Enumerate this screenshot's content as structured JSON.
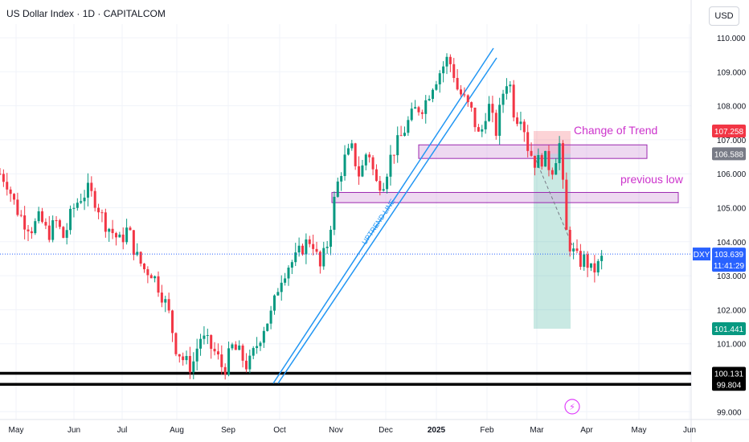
{
  "header": {
    "title": "US Dollar Index · 1D · CAPITALCOM",
    "currency": "USD"
  },
  "chart_data": {
    "type": "candlestick",
    "symbol": "DXY",
    "timeframe": "1D",
    "ylim": [
      98.8,
      110.5
    ],
    "y_ticks": [
      "110.000",
      "109.000",
      "108.000",
      "107.000",
      "106.000",
      "105.000",
      "104.000",
      "103.000",
      "102.000",
      "101.000",
      "99.000"
    ],
    "x_ticks": [
      "May",
      "Jun",
      "Jul",
      "Aug",
      "Sep",
      "Oct",
      "Nov",
      "Dec",
      "2025",
      "Feb",
      "Mar",
      "Apr",
      "May",
      "Jun"
    ],
    "price_path": [
      [
        0,
        106.0
      ],
      [
        4,
        105.8
      ],
      [
        10,
        105.0
      ],
      [
        15,
        104.6
      ],
      [
        20,
        104.4
      ],
      [
        25,
        104.7
      ],
      [
        30,
        104.2
      ],
      [
        35,
        104.6
      ],
      [
        40,
        104.1
      ],
      [
        45,
        104.9
      ],
      [
        50,
        105.3
      ],
      [
        55,
        105.5
      ],
      [
        60,
        105.2
      ],
      [
        65,
        104.6
      ],
      [
        70,
        104.3
      ],
      [
        75,
        104.0
      ],
      [
        80,
        104.4
      ],
      [
        85,
        103.6
      ],
      [
        90,
        103.2
      ],
      [
        95,
        103.1
      ],
      [
        100,
        102.6
      ],
      [
        105,
        102.0
      ],
      [
        110,
        100.9
      ],
      [
        115,
        100.5
      ],
      [
        120,
        100.3
      ],
      [
        125,
        101.2
      ],
      [
        130,
        101.0
      ],
      [
        135,
        100.7
      ],
      [
        140,
        100.2
      ],
      [
        145,
        100.9
      ],
      [
        150,
        100.7
      ],
      [
        155,
        100.3
      ],
      [
        160,
        100.9
      ],
      [
        165,
        101.5
      ],
      [
        170,
        101.9
      ],
      [
        175,
        102.9
      ],
      [
        180,
        103.3
      ],
      [
        185,
        103.5
      ],
      [
        190,
        103.9
      ],
      [
        195,
        104.1
      ],
      [
        200,
        103.2
      ],
      [
        205,
        104.0
      ],
      [
        210,
        105.5
      ],
      [
        215,
        106.4
      ],
      [
        220,
        106.7
      ],
      [
        225,
        105.9
      ],
      [
        230,
        106.8
      ],
      [
        235,
        105.7
      ],
      [
        240,
        105.8
      ],
      [
        245,
        106.6
      ],
      [
        250,
        107.0
      ],
      [
        255,
        107.5
      ],
      [
        260,
        107.9
      ],
      [
        265,
        108.0
      ],
      [
        270,
        108.6
      ],
      [
        275,
        109.0
      ],
      [
        280,
        109.4
      ],
      [
        283,
        109.1
      ],
      [
        286,
        108.5
      ],
      [
        290,
        108.2
      ],
      [
        295,
        107.8
      ],
      [
        300,
        107.0
      ],
      [
        305,
        108.1
      ],
      [
        310,
        107.2
      ],
      [
        315,
        108.5
      ],
      [
        318,
        108.9
      ],
      [
        322,
        107.6
      ],
      [
        326,
        107.8
      ],
      [
        330,
        106.8
      ],
      [
        335,
        106.3
      ],
      [
        340,
        106.5
      ],
      [
        345,
        106.1
      ],
      [
        350,
        106.9
      ],
      [
        354,
        104.3
      ],
      [
        357,
        103.8
      ],
      [
        362,
        103.4
      ],
      [
        366,
        103.5
      ],
      [
        370,
        103.1
      ],
      [
        374,
        103.3
      ],
      [
        378,
        103.64
      ]
    ],
    "annotations": [
      {
        "text": "Change of Trend",
        "color": "#cc33cc"
      },
      {
        "text": "previous low",
        "color": "#cc33cc"
      },
      {
        "text": "UPTREND LINE",
        "color": "#2196f3"
      }
    ],
    "zones": [
      {
        "name": "change-of-trend-zone",
        "y": [
          106.45,
          106.85
        ]
      },
      {
        "name": "previous-low-zone",
        "y": [
          105.15,
          105.45
        ]
      }
    ],
    "horizontal_lines": [
      {
        "name": "support-top",
        "value": 100.131
      },
      {
        "name": "support-bottom",
        "value": 99.804
      }
    ],
    "position": {
      "entry": 106.588,
      "stop": 107.258,
      "target": 101.441
    },
    "price_labels": [
      {
        "name": "stop-label",
        "value": "107.258",
        "bg": "#f23645",
        "color": "#ffffff"
      },
      {
        "name": "entry-label",
        "value": "106.588",
        "bg": "#787b86",
        "color": "#ffffff"
      },
      {
        "name": "last-price-label",
        "value": "103.639",
        "bg": "#2962ff",
        "color": "#ffffff",
        "extra": "11:41:29"
      },
      {
        "name": "target-label",
        "value": "101.441",
        "bg": "#089981",
        "color": "#ffffff"
      },
      {
        "name": "support-top-label",
        "value": "100.131",
        "bg": "#000000",
        "color": "#ffffff"
      },
      {
        "name": "support-bottom-label",
        "value": "99.804",
        "bg": "#000000",
        "color": "#ffffff"
      }
    ],
    "last_price_tag": "DXY",
    "colors": {
      "up": "#089981",
      "down": "#f23645",
      "grid": "#f0f3fa",
      "axis_text": "#131722"
    }
  }
}
